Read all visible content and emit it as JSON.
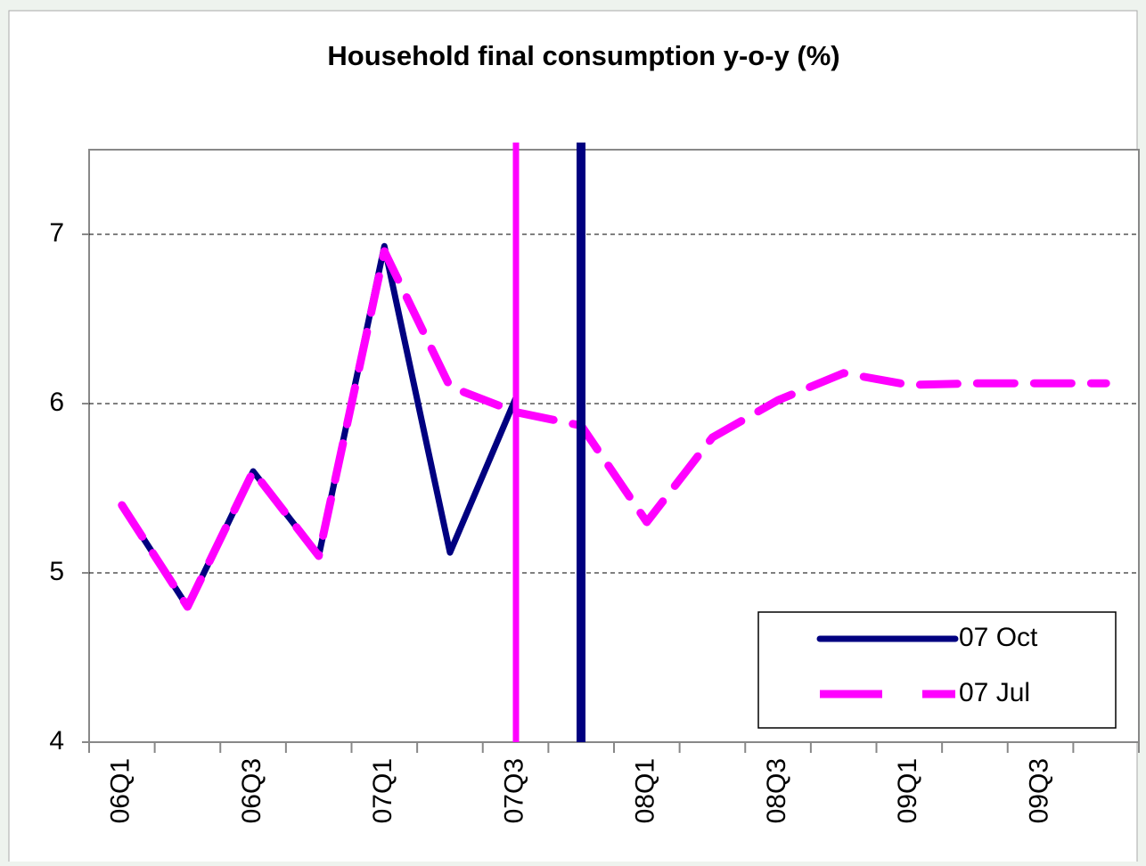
{
  "chart_data": {
    "type": "line",
    "title": "Household final consumption y-o-y (%)",
    "categories": [
      "06Q1",
      null,
      "06Q3",
      null,
      "07Q1",
      null,
      "07Q3",
      null,
      "08Q1",
      null,
      "08Q3",
      null,
      "09Q1",
      null,
      "09Q3",
      null
    ],
    "series": [
      {
        "name": "07 Oct",
        "color": "#000080",
        "dashed": false,
        "values": [
          5.4,
          4.8,
          5.6,
          5.1,
          6.93,
          5.12,
          6.03,
          null,
          null,
          null,
          null,
          null,
          null,
          null,
          null,
          null
        ]
      },
      {
        "name": "07 Jul",
        "color": "#ff00ff",
        "dashed": true,
        "values": [
          5.4,
          4.8,
          5.6,
          5.1,
          6.9,
          6.1,
          5.95,
          5.87,
          5.3,
          5.8,
          6.02,
          6.18,
          6.11,
          6.12,
          6.12,
          6.12
        ]
      }
    ],
    "ylim": [
      4,
      7.5
    ],
    "yticks": [
      4,
      5,
      6,
      7
    ],
    "grid": true,
    "legend": "lower right"
  }
}
